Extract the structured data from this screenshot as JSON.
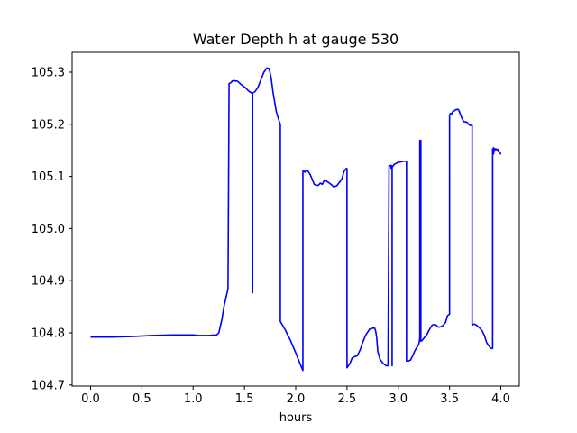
{
  "chart_data": {
    "type": "line",
    "title": "Water Depth h at gauge 530",
    "xlabel": "hours",
    "ylabel": "",
    "xlim": [
      -0.18,
      4.18
    ],
    "ylim": [
      104.698,
      105.338
    ],
    "xticks": [
      0.0,
      0.5,
      1.0,
      1.5,
      2.0,
      2.5,
      3.0,
      3.5,
      4.0
    ],
    "xtick_labels": [
      "0.0",
      "0.5",
      "1.0",
      "1.5",
      "2.0",
      "2.5",
      "3.0",
      "3.5",
      "4.0"
    ],
    "yticks": [
      104.7,
      104.8,
      104.9,
      105.0,
      105.1,
      105.2,
      105.3
    ],
    "ytick_labels": [
      "104.7",
      "104.8",
      "104.9",
      "105.0",
      "105.1",
      "105.2",
      "105.3"
    ],
    "grid": false,
    "series": [
      {
        "color": "#0000ff",
        "x": [
          0.0,
          0.2,
          0.4,
          0.6,
          0.8,
          0.95,
          1.0,
          1.05,
          1.15,
          1.23,
          1.25,
          1.28,
          1.3,
          1.34,
          1.35,
          1.35,
          1.37,
          1.38,
          1.4,
          1.41,
          1.43,
          1.47,
          1.51,
          1.54,
          1.57,
          1.58,
          1.58,
          1.58,
          1.6,
          1.63,
          1.66,
          1.69,
          1.72,
          1.74,
          1.76,
          1.78,
          1.81,
          1.84,
          1.85,
          1.85,
          1.9,
          1.95,
          2.0,
          2.04,
          2.07,
          2.07,
          2.08,
          2.09,
          2.1,
          2.12,
          2.14,
          2.16,
          2.18,
          2.2,
          2.22,
          2.24,
          2.26,
          2.28,
          2.3,
          2.33,
          2.35,
          2.37,
          2.4,
          2.42,
          2.45,
          2.47,
          2.49,
          2.5,
          2.5,
          2.53,
          2.55,
          2.58,
          2.6,
          2.63,
          2.65,
          2.68,
          2.72,
          2.75,
          2.77,
          2.78,
          2.79,
          2.8,
          2.82,
          2.85,
          2.88,
          2.9,
          2.91,
          2.91,
          2.93,
          2.93,
          2.94,
          2.94,
          2.94,
          2.95,
          2.96,
          2.98,
          3.0,
          3.03,
          3.05,
          3.07,
          3.08,
          3.08,
          3.1,
          3.12,
          3.14,
          3.16,
          3.18,
          3.2,
          3.21,
          3.21,
          3.22,
          3.22,
          3.23,
          3.25,
          3.28,
          3.3,
          3.33,
          3.35,
          3.37,
          3.38,
          3.4,
          3.43,
          3.46,
          3.48,
          3.5,
          3.5,
          3.51,
          3.52,
          3.53,
          3.54,
          3.56,
          3.57,
          3.58,
          3.59,
          3.6,
          3.61,
          3.62,
          3.63,
          3.64,
          3.65,
          3.66,
          3.67,
          3.68,
          3.69,
          3.7,
          3.71,
          3.72,
          3.72,
          3.74,
          3.76,
          3.78,
          3.8,
          3.82,
          3.84,
          3.86,
          3.88,
          3.9,
          3.92,
          3.92,
          3.93,
          3.93,
          3.94,
          3.95,
          3.96,
          3.97,
          3.98,
          3.99,
          4.0
        ],
        "y": [
          104.792,
          104.792,
          104.793,
          104.795,
          104.796,
          104.796,
          104.796,
          104.795,
          104.795,
          104.796,
          104.8,
          104.825,
          104.85,
          104.885,
          105.275,
          105.278,
          105.28,
          105.283,
          105.284,
          105.283,
          105.283,
          105.276,
          105.27,
          105.264,
          105.26,
          105.258,
          104.877,
          105.26,
          105.262,
          105.27,
          105.285,
          105.3,
          105.308,
          105.307,
          105.29,
          105.26,
          105.225,
          105.205,
          105.2,
          104.822,
          104.805,
          104.785,
          104.762,
          104.742,
          104.728,
          105.11,
          105.11,
          105.108,
          105.112,
          105.11,
          105.104,
          105.095,
          105.085,
          105.083,
          105.083,
          105.087,
          105.085,
          105.093,
          105.091,
          105.087,
          105.084,
          105.08,
          105.082,
          105.087,
          105.095,
          105.109,
          105.115,
          105.115,
          104.733,
          104.742,
          104.752,
          104.755,
          104.756,
          104.768,
          104.78,
          104.795,
          104.807,
          104.809,
          104.809,
          104.803,
          104.79,
          104.765,
          104.75,
          104.742,
          104.737,
          104.737,
          105.12,
          105.12,
          105.121,
          105.116,
          105.12,
          104.737,
          105.118,
          105.12,
          105.123,
          105.125,
          105.127,
          105.128,
          105.129,
          105.129,
          105.129,
          104.746,
          104.746,
          104.748,
          104.756,
          104.765,
          104.772,
          104.778,
          104.79,
          105.169,
          105.169,
          104.784,
          104.785,
          104.79,
          104.797,
          104.805,
          104.815,
          104.816,
          104.815,
          104.812,
          104.811,
          104.813,
          104.82,
          104.833,
          104.836,
          105.218,
          105.221,
          105.22,
          105.224,
          105.225,
          105.228,
          105.228,
          105.229,
          105.227,
          105.222,
          105.217,
          105.212,
          105.208,
          105.205,
          105.205,
          105.204,
          105.204,
          105.201,
          105.199,
          105.198,
          105.198,
          105.198,
          104.815,
          104.817,
          104.815,
          104.812,
          104.808,
          104.803,
          104.795,
          104.782,
          104.776,
          104.771,
          104.77,
          105.153,
          105.143,
          105.155,
          105.15,
          105.153,
          105.151,
          105.152,
          105.148,
          105.147,
          105.142
        ]
      }
    ]
  }
}
